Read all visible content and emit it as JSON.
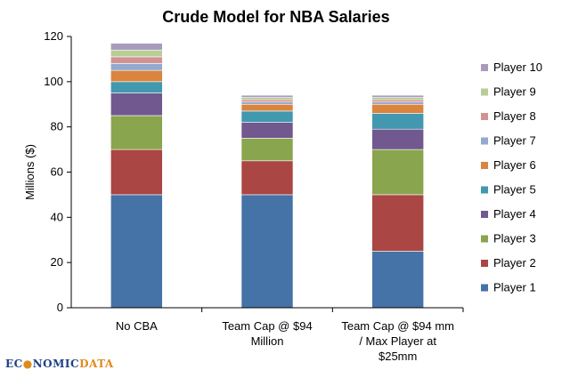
{
  "chart_data": {
    "type": "bar",
    "stacked": true,
    "title": "Crude Model for NBA Salaries",
    "ylabel": "Millions ($)",
    "xlabel": "",
    "ylim": [
      0,
      120
    ],
    "yticks": [
      0,
      20,
      40,
      60,
      80,
      100,
      120
    ],
    "categories": [
      [
        "No CBA"
      ],
      [
        "Team Cap @ $94",
        "Million"
      ],
      [
        "Team Cap @ $94 mm",
        "/ Max Player at",
        "$25mm"
      ]
    ],
    "series": [
      {
        "name": "Player 1",
        "color": "#4572a7",
        "values": [
          50,
          50,
          25
        ]
      },
      {
        "name": "Player 2",
        "color": "#aa4643",
        "values": [
          20,
          15,
          25
        ]
      },
      {
        "name": "Player 3",
        "color": "#89a54e",
        "values": [
          15,
          10,
          20
        ]
      },
      {
        "name": "Player 4",
        "color": "#71588f",
        "values": [
          10,
          7,
          9
        ]
      },
      {
        "name": "Player 5",
        "color": "#4198af",
        "values": [
          5,
          5,
          7
        ]
      },
      {
        "name": "Player 6",
        "color": "#db843d",
        "values": [
          5,
          3,
          4
        ]
      },
      {
        "name": "Player 7",
        "color": "#93a9cf",
        "values": [
          3,
          1,
          1
        ]
      },
      {
        "name": "Player 8",
        "color": "#d19392",
        "values": [
          3,
          1,
          1
        ]
      },
      {
        "name": "Player 9",
        "color": "#b9cd96",
        "values": [
          3,
          1,
          1
        ]
      },
      {
        "name": "Player 10",
        "color": "#a99bbd",
        "values": [
          3,
          1,
          1
        ]
      }
    ],
    "legend_position": "right",
    "grid": false
  },
  "watermark": {
    "part1": "EC",
    "part2": "NOMIC",
    "part3": "DATA"
  }
}
